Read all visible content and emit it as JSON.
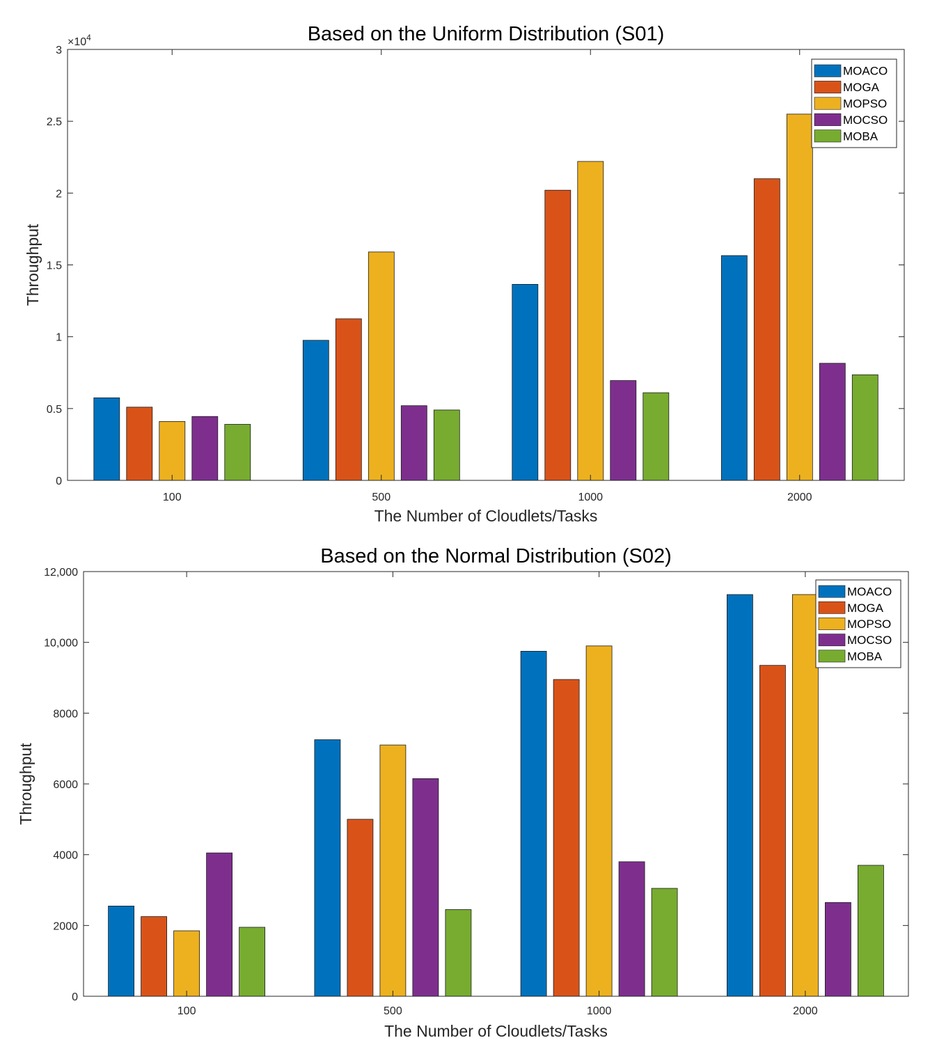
{
  "colors": {
    "MOACO": "#0072BD",
    "MOGA": "#D95319",
    "MOPSO": "#EDB120",
    "MOCSO": "#7E2F8E",
    "MOBA": "#77AC30",
    "axis": "#262626",
    "frame": "#262626"
  },
  "chart_data": [
    {
      "type": "bar",
      "title": "Based on the Uniform Distribution (S01)",
      "xlabel": "The Number of Cloudlets/Tasks",
      "ylabel": "Throughput",
      "categories": [
        "100",
        "500",
        "1000",
        "2000"
      ],
      "ylim": [
        0,
        30000
      ],
      "yticks": [
        0,
        5000,
        10000,
        15000,
        20000,
        25000,
        30000
      ],
      "ytick_labels": [
        "0",
        "0.5",
        "1",
        "1.5",
        "2",
        "2.5",
        "3"
      ],
      "exponent_label": "×10",
      "exponent": "4",
      "legend_position": "top-right",
      "series": [
        {
          "name": "MOACO",
          "values": [
            5750,
            9750,
            13650,
            15650
          ]
        },
        {
          "name": "MOGA",
          "values": [
            5100,
            11250,
            20200,
            21000
          ]
        },
        {
          "name": "MOPSO",
          "values": [
            4100,
            15900,
            22200,
            25500
          ]
        },
        {
          "name": "MOCSO",
          "values": [
            4450,
            5200,
            6950,
            8150
          ]
        },
        {
          "name": "MOBA",
          "values": [
            3900,
            4900,
            6100,
            7350
          ]
        }
      ]
    },
    {
      "type": "bar",
      "title": "Based on the Normal Distribution (S02)",
      "xlabel": "The Number of Cloudlets/Tasks",
      "ylabel": "Throughput",
      "categories": [
        "100",
        "500",
        "1000",
        "2000"
      ],
      "ylim": [
        0,
        12000
      ],
      "yticks": [
        0,
        2000,
        4000,
        6000,
        8000,
        10000,
        12000
      ],
      "ytick_labels": [
        "0",
        "2000",
        "4000",
        "6000",
        "8000",
        "10,000",
        "12,000"
      ],
      "legend_position": "top-right",
      "series": [
        {
          "name": "MOACO",
          "values": [
            2550,
            7250,
            9750,
            11350
          ]
        },
        {
          "name": "MOGA",
          "values": [
            2250,
            5000,
            8950,
            9350
          ]
        },
        {
          "name": "MOPSO",
          "values": [
            1850,
            7100,
            9900,
            11350
          ]
        },
        {
          "name": "MOCSO",
          "values": [
            4050,
            6150,
            3800,
            2650
          ]
        },
        {
          "name": "MOBA",
          "values": [
            1950,
            2450,
            3050,
            3700
          ]
        }
      ]
    }
  ]
}
